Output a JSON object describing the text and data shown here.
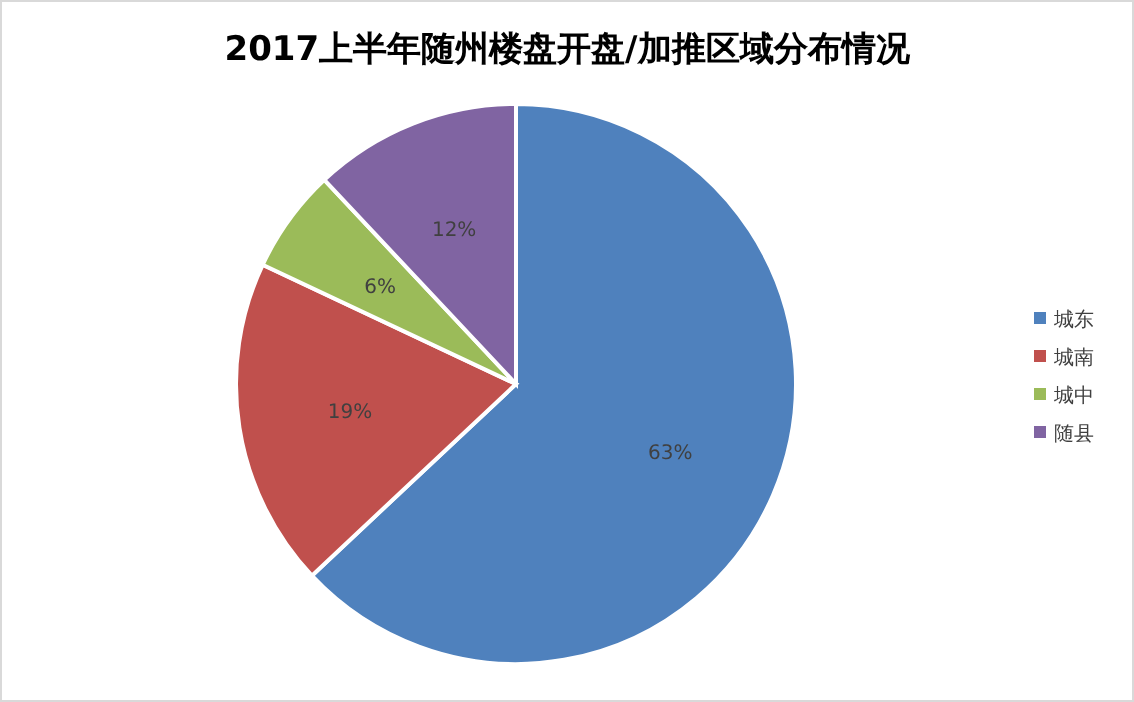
{
  "chart_data": {
    "type": "pie",
    "title": "2017上半年随州楼盘开盘/加推区域分布情况",
    "categories": [
      "城东",
      "城南",
      "城中",
      "随县"
    ],
    "values": [
      63,
      19,
      6,
      12
    ],
    "colors": [
      "#4f81bd",
      "#c0504d",
      "#9bbb59",
      "#8064a2"
    ],
    "value_labels": [
      "63%",
      "19%",
      "6%",
      "12%"
    ],
    "legend": "right"
  }
}
